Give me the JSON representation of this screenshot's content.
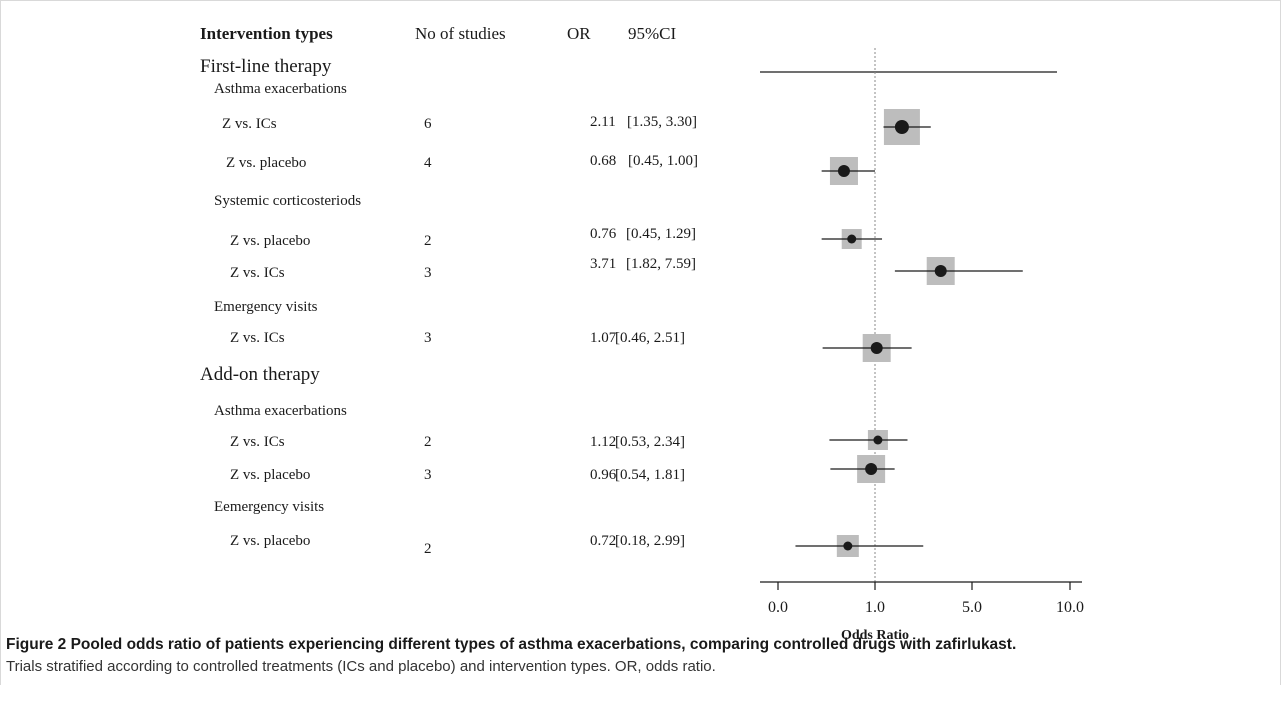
{
  "headers": {
    "intervention": "Intervention types",
    "studies": "No of studies",
    "or": "OR",
    "ci": "95%CI"
  },
  "groups": {
    "first_line": "First-line therapy",
    "add_on": "Add-on therapy"
  },
  "subgroups": {
    "fl_asthma": "Asthma  exacerbations",
    "fl_systemic": "Systemic corticosteriods",
    "fl_emergency": "Emergency visits",
    "ao_asthma": "Asthma  exacerbations",
    "ao_emergency": "Eemergency visits"
  },
  "chart_data": {
    "type": "forest",
    "xlabel": "Odds Ratio",
    "x_ticks": [
      "0.0",
      "1.0",
      "5.0",
      "10.0"
    ],
    "reference_line": 1.0,
    "rows": [
      {
        "label": "Z vs. ICs",
        "studies": "6",
        "or_text": "2.11",
        "ci_text": "[1.35, 3.30]",
        "or": 2.11,
        "ci": [
          1.35,
          3.3
        ]
      },
      {
        "label": "Z vs. placebo",
        "studies": "4",
        "or_text": "0.68",
        "ci_text": "[0.45, 1.00]",
        "or": 0.68,
        "ci": [
          0.45,
          1.0
        ]
      },
      {
        "label": "Z vs. placebo",
        "studies": "2",
        "or_text": "0.76",
        "ci_text": "[0.45, 1.29]",
        "or": 0.76,
        "ci": [
          0.45,
          1.29
        ]
      },
      {
        "label": "Z vs. ICs",
        "studies": "3",
        "or_text": "3.71",
        "ci_text": "[1.82, 7.59]",
        "or": 3.71,
        "ci": [
          1.82,
          7.59
        ]
      },
      {
        "label": "Z vs. ICs",
        "studies": "3",
        "or_text": "1.07",
        "ci_text": "[0.46, 2.51]",
        "or": 1.07,
        "ci": [
          0.46,
          2.51
        ]
      },
      {
        "label": "Z vs. ICs",
        "studies": "2",
        "or_text": "1.12",
        "ci_text": "[0.53, 2.34]",
        "or": 1.12,
        "ci": [
          0.53,
          2.34
        ]
      },
      {
        "label": "Z vs. placebo",
        "studies": "3",
        "or_text": "0.96",
        "ci_text": "[0.54, 1.81]",
        "or": 0.96,
        "ci": [
          0.54,
          1.81
        ]
      },
      {
        "label": "Z vs. placebo",
        "studies": "2",
        "or_text": "0.72",
        "ci_text": "[0.18, 2.99]",
        "or": 0.72,
        "ci": [
          0.18,
          2.99
        ]
      }
    ],
    "colors": {
      "marker": "#1a1a1a",
      "weight_box": "#bdbdbd",
      "ref_line": "#8a8a8a"
    }
  },
  "caption": {
    "title": "Figure 2 Pooled odds ratio of patients experiencing different types of asthma exacerbations, comparing controlled drugs with zafirlukast.",
    "body": "Trials stratified according to controlled treatments (ICs and placebo) and intervention types. OR, odds ratio."
  }
}
